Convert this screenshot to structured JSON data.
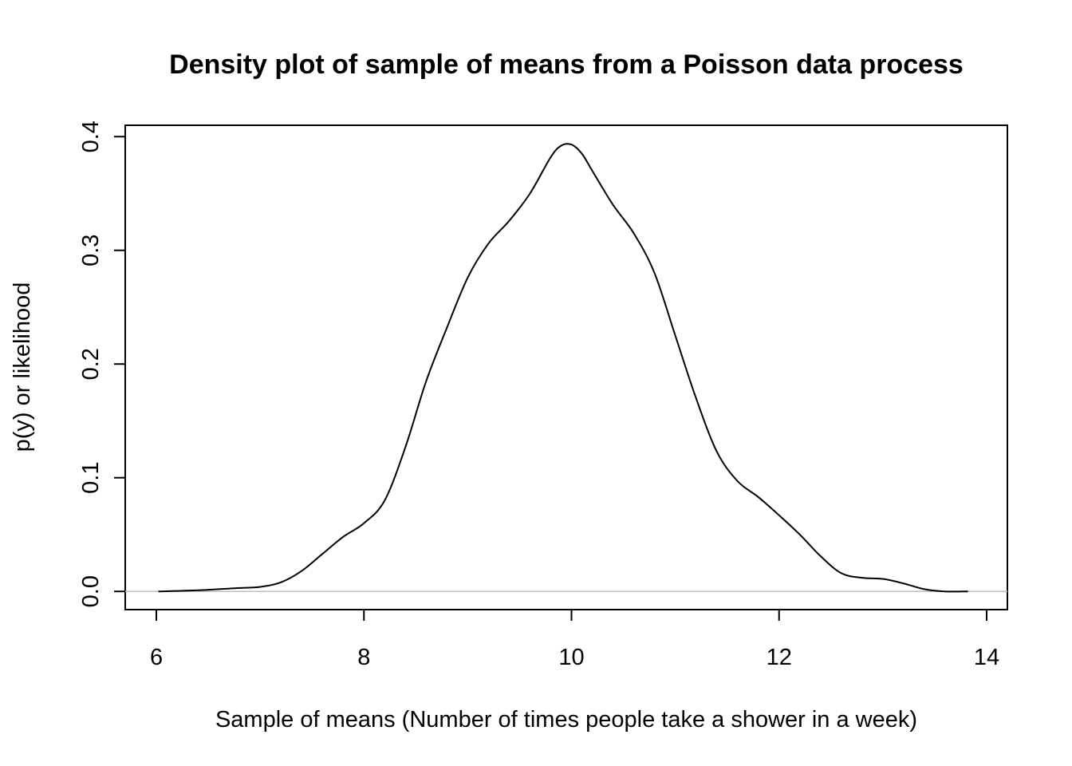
{
  "chart_data": {
    "type": "line",
    "title": "Density plot of sample of means from a Poisson data process",
    "xlabel": "Sample of means (Number of times people take a shower in a week)",
    "ylabel": "p(y) or likelihood",
    "xlim": [
      5.7,
      14.2
    ],
    "ylim": [
      -0.016,
      0.41
    ],
    "x_ticks": [
      6,
      8,
      10,
      12,
      14
    ],
    "x_tick_labels": [
      "6",
      "8",
      "10",
      "12",
      "14"
    ],
    "y_ticks": [
      0.0,
      0.1,
      0.2,
      0.3,
      0.4
    ],
    "y_tick_labels": [
      "0.0",
      "0.1",
      "0.2",
      "0.3",
      "0.4"
    ],
    "grid": false,
    "baseline": {
      "y": 0,
      "color": "#bebebe"
    },
    "series": [
      {
        "color": "#000000",
        "x": [
          6.02,
          6.4,
          6.8,
          7.0,
          7.2,
          7.4,
          7.6,
          7.8,
          8.0,
          8.2,
          8.4,
          8.6,
          8.8,
          9.0,
          9.2,
          9.4,
          9.6,
          9.8,
          9.9,
          10.0,
          10.1,
          10.2,
          10.4,
          10.6,
          10.8,
          11.0,
          11.2,
          11.4,
          11.6,
          11.8,
          12.0,
          12.2,
          12.4,
          12.6,
          12.8,
          13.0,
          13.2,
          13.4,
          13.6,
          13.82
        ],
        "y": [
          0.0,
          0.001,
          0.003,
          0.004,
          0.008,
          0.018,
          0.033,
          0.048,
          0.06,
          0.08,
          0.127,
          0.185,
          0.232,
          0.276,
          0.306,
          0.326,
          0.35,
          0.382,
          0.392,
          0.393,
          0.385,
          0.37,
          0.34,
          0.315,
          0.28,
          0.225,
          0.17,
          0.123,
          0.097,
          0.083,
          0.067,
          0.05,
          0.031,
          0.016,
          0.012,
          0.011,
          0.007,
          0.002,
          0.0,
          0.0
        ]
      }
    ]
  }
}
